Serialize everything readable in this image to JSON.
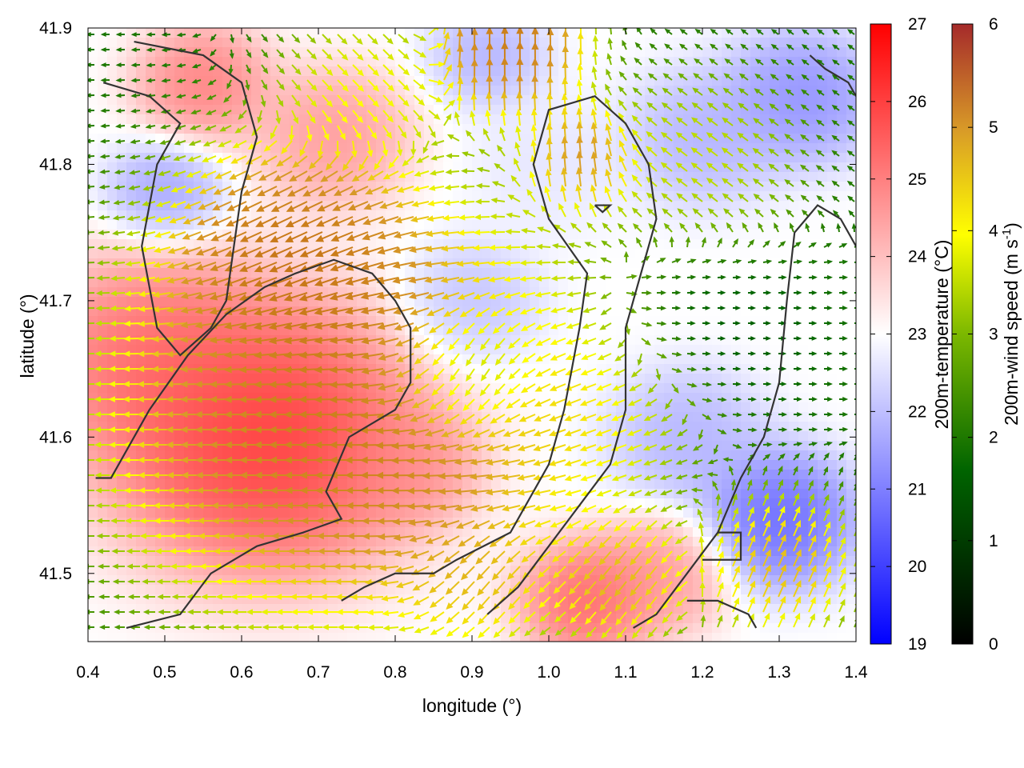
{
  "chart_data": {
    "type": "heatmap",
    "title": "",
    "xlabel": "longitude (°)",
    "ylabel": "latitude (°)",
    "xlim": [
      0.4,
      1.4
    ],
    "ylim": [
      41.45,
      41.9
    ],
    "x_ticks": [
      "0.4",
      "0.5",
      "0.6",
      "0.7",
      "0.8",
      "0.9",
      "1.0",
      "1.1",
      "1.2",
      "1.3",
      "1.4"
    ],
    "y_ticks": [
      "41.5",
      "41.6",
      "41.7",
      "41.8",
      "41.9"
    ],
    "grid": false,
    "temperature_colorbar": {
      "label": "200m-temperature (°C)",
      "range": [
        19,
        27
      ],
      "ticks": [
        "19",
        "20",
        "21",
        "22",
        "23",
        "24",
        "25",
        "26",
        "27"
      ],
      "colors": [
        "#0000ff",
        "#ffffff",
        "#ff0000"
      ]
    },
    "wind_colorbar": {
      "label_main": "200m-wind speed (m s",
      "label_sup": "-1",
      "label_end": ")",
      "range": [
        0,
        6
      ],
      "ticks": [
        "0",
        "1",
        "2",
        "3",
        "4",
        "5",
        "6"
      ],
      "colors": [
        "#000000",
        "#006400",
        "#7cb800",
        "#ffff00",
        "#d89a28",
        "#c87818",
        "#a52a2a"
      ]
    },
    "temperature_blobs": [
      {
        "lon": 0.63,
        "lat": 41.6,
        "t": 27.0,
        "r": 0.16
      },
      {
        "lon": 0.48,
        "lat": 41.66,
        "t": 25.8,
        "r": 0.12
      },
      {
        "lon": 0.55,
        "lat": 41.86,
        "t": 25.5,
        "r": 0.07
      },
      {
        "lon": 0.72,
        "lat": 41.82,
        "t": 25.0,
        "r": 0.08
      },
      {
        "lon": 0.5,
        "lat": 41.78,
        "t": 21.2,
        "r": 0.06
      },
      {
        "lon": 0.82,
        "lat": 41.58,
        "t": 25.0,
        "r": 0.07
      },
      {
        "lon": 1.05,
        "lat": 41.48,
        "t": 26.0,
        "r": 0.07
      },
      {
        "lon": 1.15,
        "lat": 41.5,
        "t": 25.0,
        "r": 0.07
      },
      {
        "lon": 1.3,
        "lat": 41.54,
        "t": 20.0,
        "r": 0.08
      },
      {
        "lon": 1.33,
        "lat": 41.85,
        "t": 20.8,
        "r": 0.08
      },
      {
        "lon": 1.2,
        "lat": 41.82,
        "t": 21.5,
        "r": 0.08
      },
      {
        "lon": 1.18,
        "lat": 41.6,
        "t": 21.5,
        "r": 0.08
      },
      {
        "lon": 0.9,
        "lat": 41.7,
        "t": 21.8,
        "r": 0.07
      },
      {
        "lon": 1.0,
        "lat": 41.8,
        "t": 22.5,
        "r": 0.08
      },
      {
        "lon": 0.92,
        "lat": 41.88,
        "t": 21.5,
        "r": 0.06
      }
    ],
    "wind_sources": [
      {
        "lon": 0.75,
        "lat": 41.62,
        "speed": 6.0,
        "u": -1.0,
        "v": 0.0,
        "r": 0.24
      },
      {
        "lon": 0.68,
        "lat": 41.74,
        "speed": 6.0,
        "u": -0.8,
        "v": -0.5,
        "r": 0.12
      },
      {
        "lon": 0.95,
        "lat": 41.88,
        "speed": 6.0,
        "u": 0.0,
        "v": 1.0,
        "r": 0.08
      },
      {
        "lon": 0.75,
        "lat": 41.86,
        "speed": 3.5,
        "u": 0.7,
        "v": -0.7,
        "r": 0.08
      },
      {
        "lon": 1.05,
        "lat": 41.8,
        "speed": 5.0,
        "u": 0.0,
        "v": 1.0,
        "r": 0.06
      },
      {
        "lon": 0.9,
        "lat": 41.65,
        "speed": 1.2,
        "u": 0.0,
        "v": -1.0,
        "r": 0.08
      },
      {
        "lon": 1.05,
        "lat": 41.62,
        "speed": 3.5,
        "u": -0.9,
        "v": -0.4,
        "r": 0.1
      },
      {
        "lon": 1.22,
        "lat": 41.68,
        "speed": 0.8,
        "u": 1.0,
        "v": 0.0,
        "r": 0.1
      },
      {
        "lon": 1.2,
        "lat": 41.8,
        "speed": 3.0,
        "u": -0.8,
        "v": 0.6,
        "r": 0.1
      },
      {
        "lon": 1.3,
        "lat": 41.5,
        "speed": 4.5,
        "u": 0.4,
        "v": 0.9,
        "r": 0.08
      },
      {
        "lon": 1.1,
        "lat": 41.5,
        "speed": 4.5,
        "u": -0.6,
        "v": -0.8,
        "r": 0.07
      },
      {
        "lon": 0.92,
        "lat": 41.5,
        "speed": 4.0,
        "u": -0.5,
        "v": -0.8,
        "r": 0.07
      }
    ],
    "contours": [
      [
        [
          0.41,
          41.57
        ],
        [
          0.43,
          41.57
        ],
        [
          0.48,
          41.62
        ],
        [
          0.53,
          41.66
        ],
        [
          0.58,
          41.69
        ],
        [
          0.63,
          41.71
        ],
        [
          0.67,
          41.72
        ],
        [
          0.72,
          41.73
        ],
        [
          0.77,
          41.72
        ],
        [
          0.8,
          41.7
        ],
        [
          0.82,
          41.68
        ],
        [
          0.82,
          41.64
        ],
        [
          0.8,
          41.62
        ],
        [
          0.74,
          41.6
        ],
        [
          0.71,
          41.56
        ],
        [
          0.73,
          41.54
        ],
        [
          0.68,
          41.53
        ],
        [
          0.62,
          41.52
        ],
        [
          0.56,
          41.5
        ],
        [
          0.52,
          41.47
        ],
        [
          0.45,
          41.46
        ]
      ],
      [
        [
          0.46,
          41.89
        ],
        [
          0.55,
          41.88
        ],
        [
          0.6,
          41.86
        ],
        [
          0.62,
          41.82
        ],
        [
          0.6,
          41.78
        ],
        [
          0.58,
          41.7
        ],
        [
          0.56,
          41.68
        ],
        [
          0.52,
          41.66
        ],
        [
          0.49,
          41.68
        ],
        [
          0.47,
          41.74
        ],
        [
          0.49,
          41.8
        ],
        [
          0.52,
          41.83
        ],
        [
          0.48,
          41.85
        ],
        [
          0.42,
          41.86
        ]
      ],
      [
        [
          0.73,
          41.48
        ],
        [
          0.76,
          41.49
        ],
        [
          0.8,
          41.5
        ],
        [
          0.85,
          41.5
        ],
        [
          0.88,
          41.51
        ],
        [
          0.95,
          41.53
        ],
        [
          1.0,
          41.58
        ],
        [
          1.02,
          41.62
        ],
        [
          1.04,
          41.68
        ],
        [
          1.05,
          41.72
        ],
        [
          1.0,
          41.76
        ],
        [
          0.98,
          41.8
        ],
        [
          1.0,
          41.84
        ],
        [
          1.06,
          41.85
        ],
        [
          1.1,
          41.83
        ],
        [
          1.13,
          41.8
        ],
        [
          1.14,
          41.76
        ],
        [
          1.12,
          41.72
        ],
        [
          1.1,
          41.68
        ],
        [
          1.1,
          41.62
        ],
        [
          1.08,
          41.58
        ],
        [
          1.04,
          41.55
        ],
        [
          1.0,
          41.52
        ],
        [
          0.96,
          41.49
        ],
        [
          0.92,
          41.47
        ]
      ],
      [
        [
          1.06,
          41.77
        ],
        [
          1.08,
          41.77
        ],
        [
          1.07,
          41.765
        ],
        [
          1.06,
          41.77
        ]
      ],
      [
        [
          1.11,
          41.46
        ],
        [
          1.14,
          41.47
        ],
        [
          1.18,
          41.5
        ],
        [
          1.22,
          41.53
        ],
        [
          1.25,
          41.57
        ],
        [
          1.28,
          41.6
        ],
        [
          1.3,
          41.64
        ],
        [
          1.31,
          41.7
        ],
        [
          1.32,
          41.75
        ],
        [
          1.35,
          41.77
        ],
        [
          1.38,
          41.76
        ],
        [
          1.4,
          41.74
        ]
      ],
      [
        [
          1.18,
          41.48
        ],
        [
          1.22,
          41.48
        ],
        [
          1.26,
          41.47
        ],
        [
          1.27,
          41.46
        ]
      ],
      [
        [
          1.2,
          41.51
        ],
        [
          1.25,
          41.51
        ],
        [
          1.25,
          41.53
        ],
        [
          1.22,
          41.53
        ]
      ],
      [
        [
          1.34,
          41.88
        ],
        [
          1.36,
          41.87
        ],
        [
          1.39,
          41.86
        ],
        [
          1.4,
          41.85
        ]
      ]
    ]
  }
}
